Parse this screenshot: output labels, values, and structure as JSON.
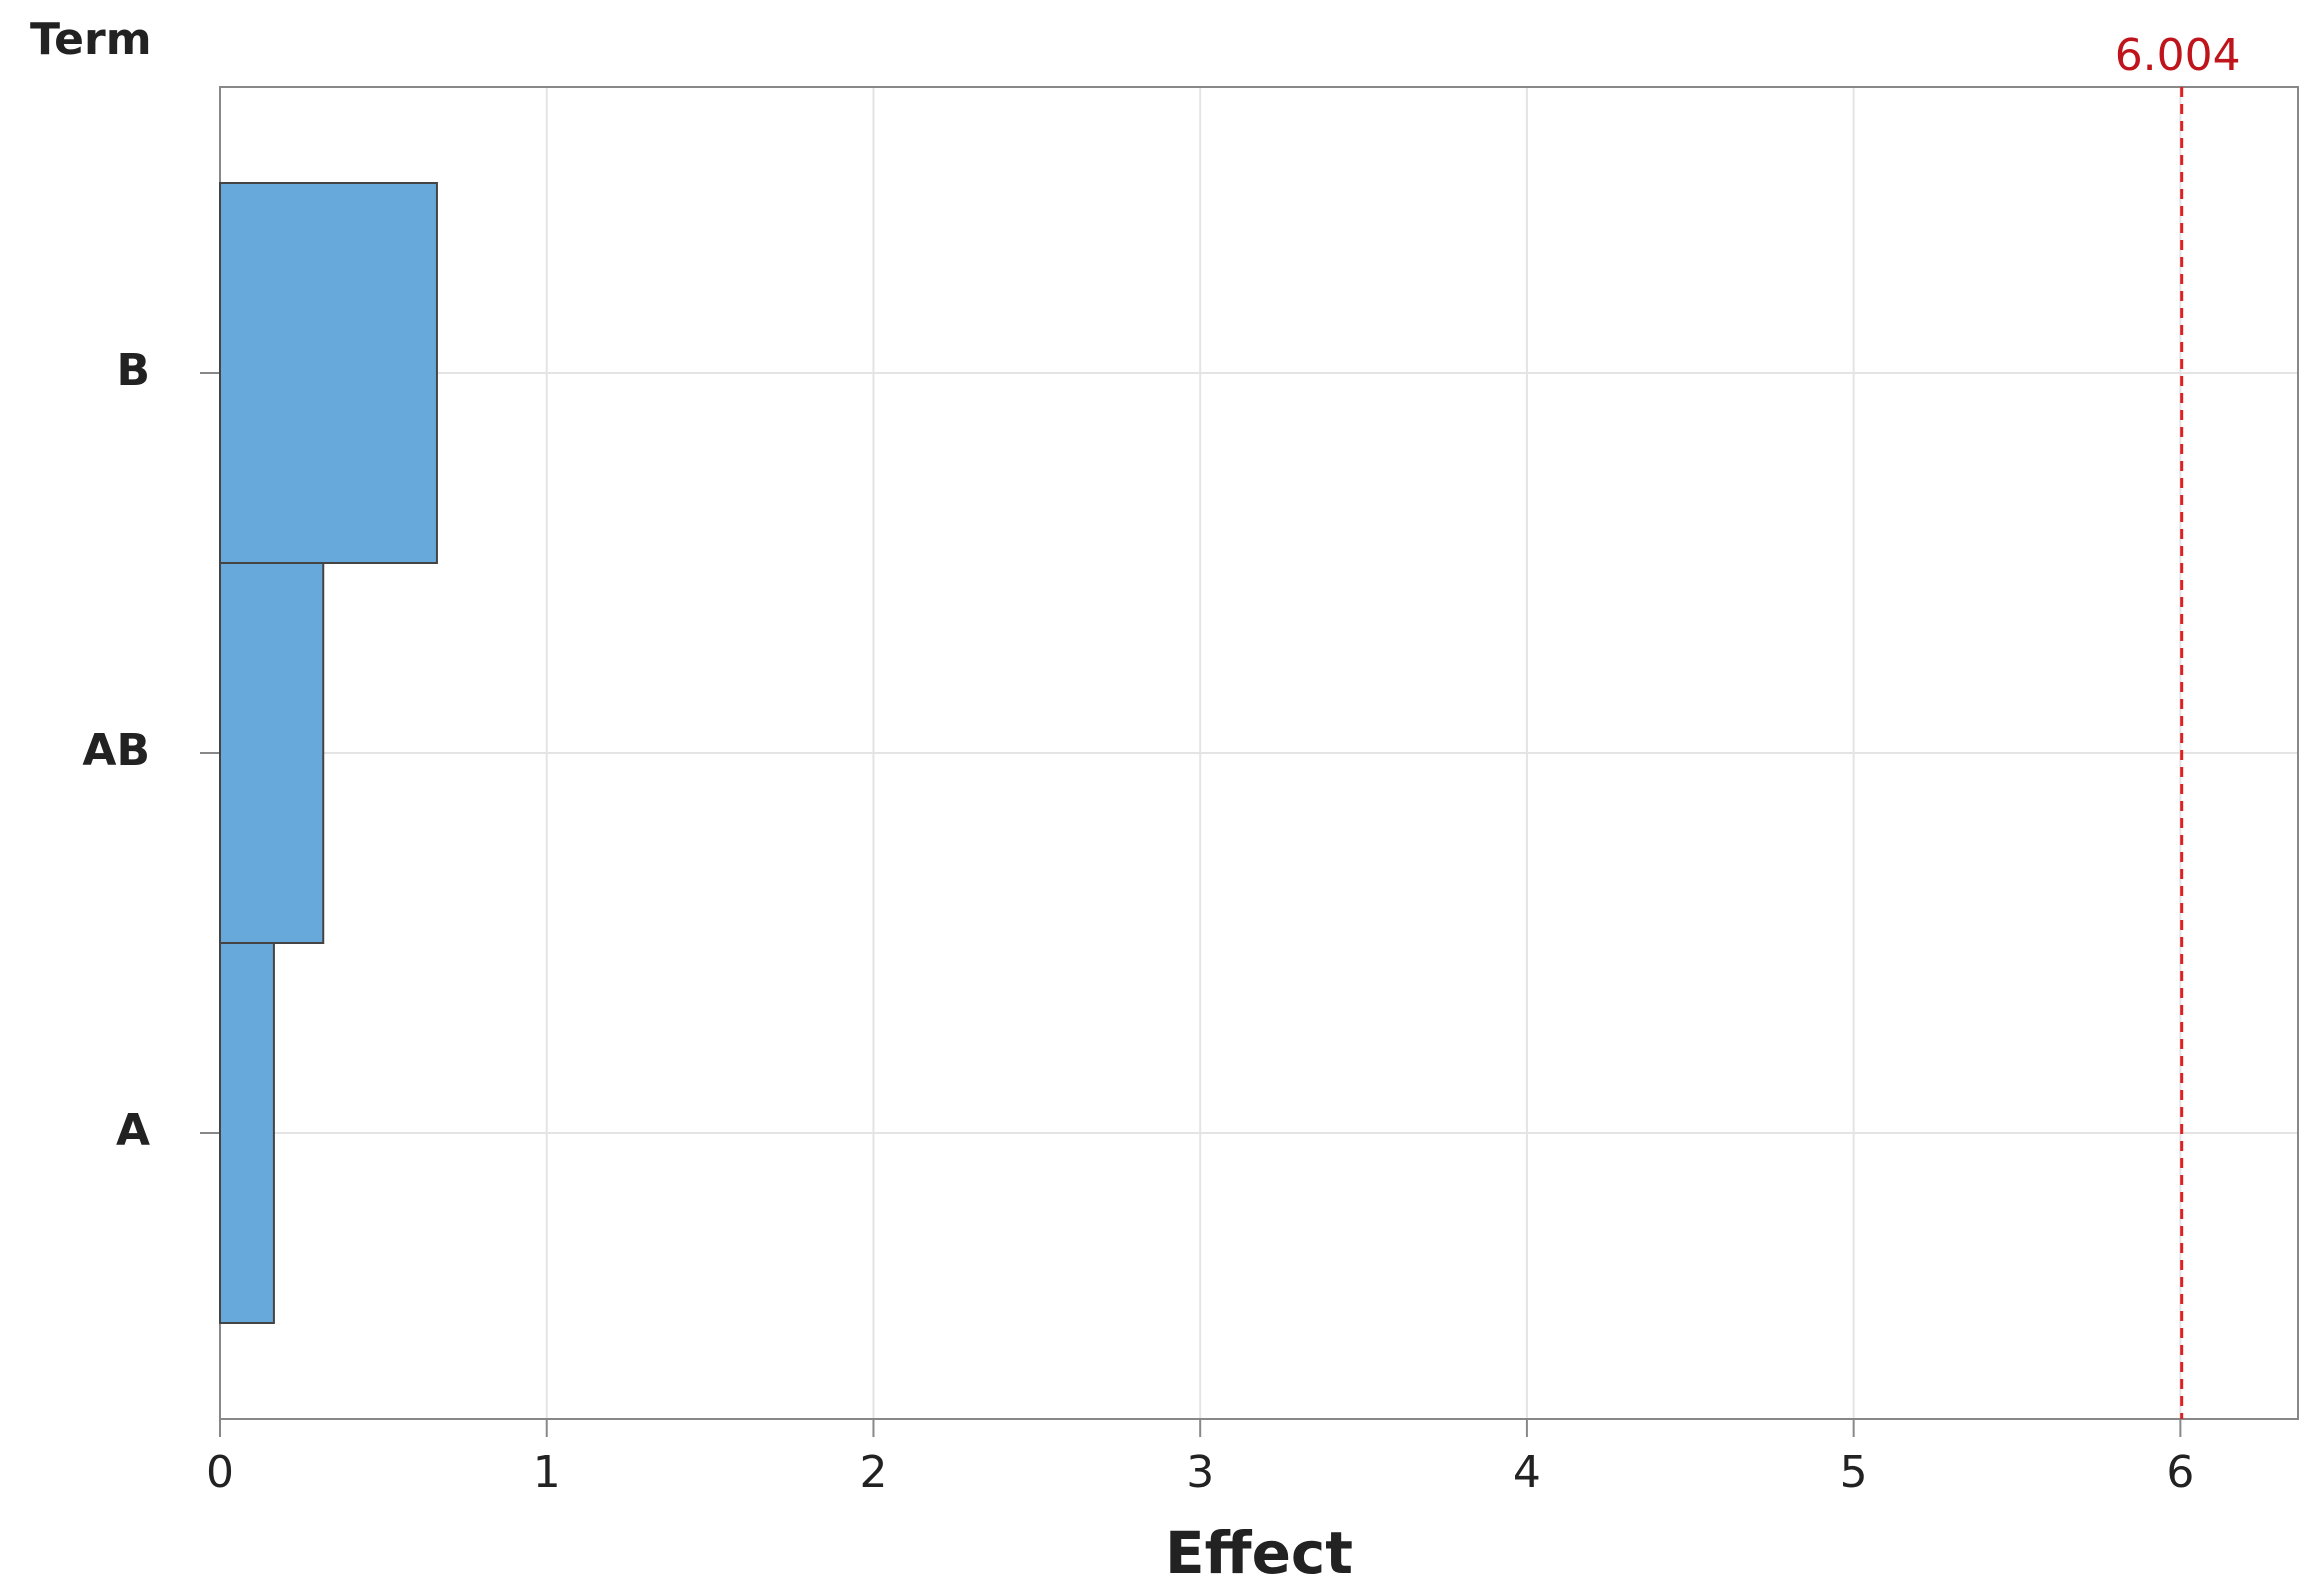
{
  "chart_data": {
    "type": "bar",
    "orientation": "horizontal",
    "y_label": "Term",
    "x_label": "Effect",
    "categories": [
      "B",
      "AB",
      "A"
    ],
    "values": [
      0.664,
      0.316,
      0.165
    ],
    "color": "#68a9dc",
    "xlim": [
      0,
      6.36
    ],
    "xticks": [
      0,
      1,
      2,
      3,
      4,
      5,
      6
    ],
    "grid": true,
    "reference_line": {
      "value": 6.004,
      "color": "#e02020"
    }
  }
}
